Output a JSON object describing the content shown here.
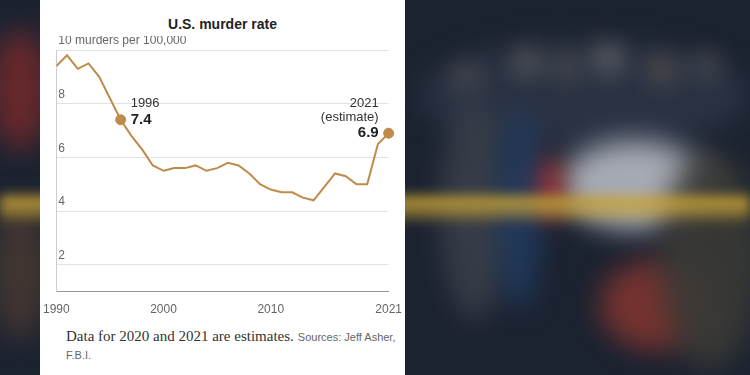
{
  "chart_data": {
    "type": "line",
    "title": "U.S. murder rate",
    "x": [
      1990,
      1991,
      1992,
      1993,
      1994,
      1995,
      1996,
      1997,
      1998,
      1999,
      2000,
      2001,
      2002,
      2003,
      2004,
      2005,
      2006,
      2007,
      2008,
      2009,
      2010,
      2011,
      2012,
      2013,
      2014,
      2015,
      2016,
      2017,
      2018,
      2019,
      2020,
      2021
    ],
    "values": [
      9.4,
      9.8,
      9.3,
      9.5,
      9.0,
      8.2,
      7.4,
      6.8,
      6.3,
      5.7,
      5.5,
      5.6,
      5.6,
      5.7,
      5.5,
      5.6,
      5.8,
      5.7,
      5.4,
      5.0,
      4.8,
      4.7,
      4.7,
      4.5,
      4.4,
      4.9,
      5.4,
      5.3,
      5.0,
      5.0,
      6.5,
      6.9
    ],
    "color": "#c08a4a",
    "xlim": [
      1990,
      2021
    ],
    "xticks": [
      1990,
      2000,
      2010,
      2021
    ],
    "ylim": [
      1,
      10
    ],
    "yticks": [
      2,
      4,
      6,
      8,
      {
        "value": 10,
        "label": "10 murders per 100,000"
      }
    ],
    "grid": true,
    "annotations": [
      {
        "x": 1996,
        "y": 7.4,
        "label": "1996"
      },
      {
        "x": 2021,
        "y": 6.9,
        "label": "2021\n(estimate)"
      }
    ],
    "note": "Data for 2020 and 2021 are estimates.",
    "source": "Sources: Jeff Asher, F.B.I."
  }
}
